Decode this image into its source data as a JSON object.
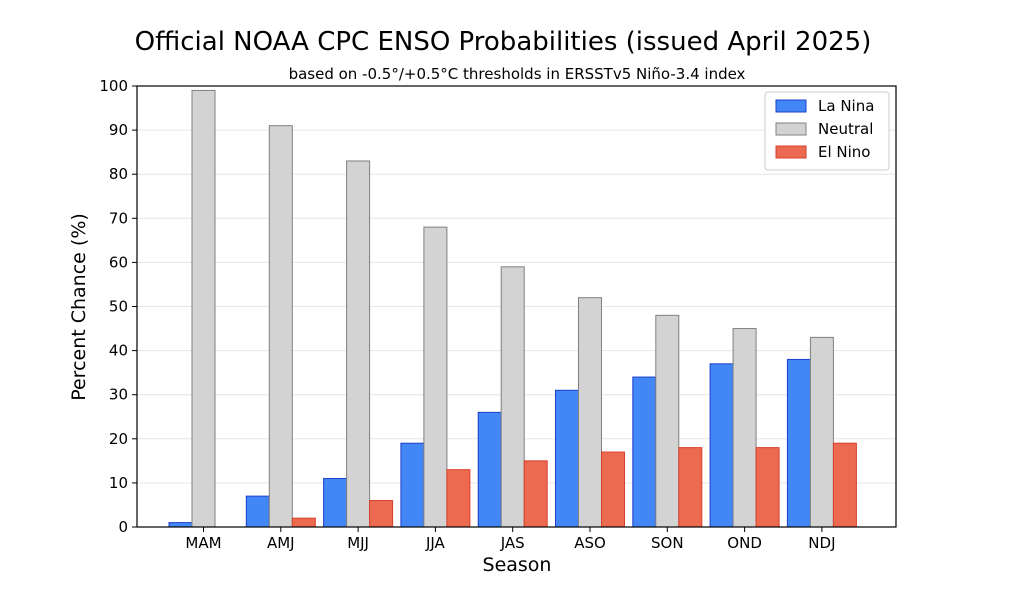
{
  "chart_data": {
    "type": "bar",
    "title": "Official NOAA CPC ENSO Probabilities (issued April 2025)",
    "subtitle": "based on -0.5°/+0.5°C thresholds in ERSSTv5 Niño-3.4 index",
    "xlabel": "Season",
    "ylabel": "Percent Chance (%)",
    "ylim": [
      0,
      100
    ],
    "yticks": [
      "0",
      "10",
      "20",
      "30",
      "40",
      "50",
      "60",
      "70",
      "80",
      "90",
      "100"
    ],
    "categories": [
      "MAM",
      "AMJ",
      "MJJ",
      "JJA",
      "JAS",
      "ASO",
      "SON",
      "OND",
      "NDJ"
    ],
    "grid": "horizontal",
    "legend_position": "top-right",
    "series": [
      {
        "name": "La Nina",
        "color": "#4287f5",
        "edge": "#1f3fcf",
        "values": [
          1,
          7,
          11,
          19,
          26,
          31,
          34,
          37,
          38
        ]
      },
      {
        "name": "Neutral",
        "color": "#d3d3d3",
        "edge": "#808080",
        "values": [
          99,
          91,
          83,
          68,
          59,
          52,
          48,
          45,
          43
        ]
      },
      {
        "name": "El Nino",
        "color": "#ec6a50",
        "edge": "#d9402a",
        "values": [
          0,
          2,
          6,
          13,
          15,
          17,
          18,
          18,
          19
        ]
      }
    ]
  }
}
